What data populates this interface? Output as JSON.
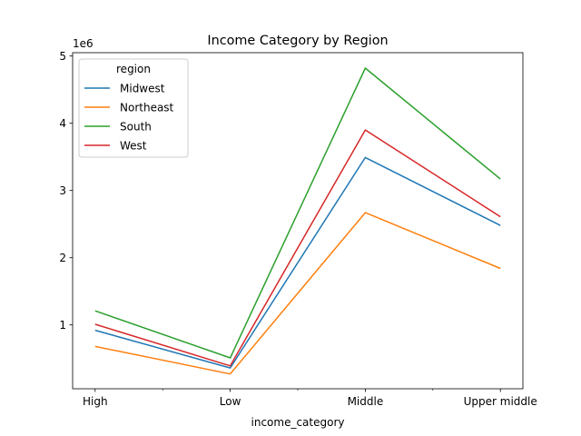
{
  "chart_data": {
    "type": "line",
    "title": "Income Category by Region",
    "xlabel": "income_category",
    "ylabel": "",
    "y_offset_label": "1e6",
    "categories": [
      "High",
      "Low",
      "Middle",
      "Upper middle"
    ],
    "yticks": [
      1,
      2,
      3,
      4,
      5
    ],
    "ylim": [
      0.05,
      5.05
    ],
    "grid": false,
    "legend_title": "region",
    "legend_position": "top-left",
    "series": [
      {
        "name": "Midwest",
        "color": "#1f77b4",
        "values": [
          0.92,
          0.36,
          3.49,
          2.48
        ]
      },
      {
        "name": "Northeast",
        "color": "#ff7f0e",
        "values": [
          0.68,
          0.27,
          2.67,
          1.84
        ]
      },
      {
        "name": "South",
        "color": "#2ca02c",
        "values": [
          1.21,
          0.51,
          4.82,
          3.17
        ]
      },
      {
        "name": "West",
        "color": "#d62728",
        "values": [
          1.01,
          0.39,
          3.9,
          2.61
        ]
      }
    ]
  }
}
